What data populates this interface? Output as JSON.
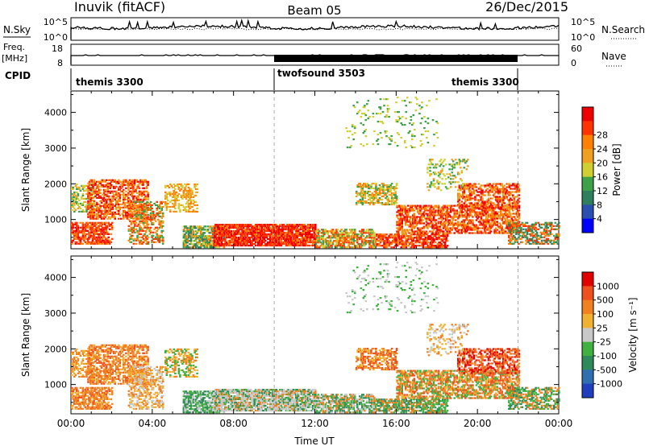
{
  "header": {
    "radar": "Inuvik (fitACF)",
    "beam": "Beam 05",
    "date": "26/Dec/2015"
  },
  "nsky_panel": {
    "left_label": "N.Sky",
    "left_ticks": [
      "10^5",
      "10^0"
    ],
    "right_ticks": [
      "10^5",
      "10^0"
    ],
    "right_label": "N.Search"
  },
  "freq_panel": {
    "left_label_top": "Freq.",
    "left_label_unit": "[MHz]",
    "left_ticks": [
      "18",
      "8"
    ],
    "right_ticks": [
      "60",
      "0"
    ],
    "right_label": "Nave"
  },
  "cpid": {
    "label": "CPID",
    "entries": [
      "themis 3300",
      "twofsound 3503",
      "themis 3300"
    ]
  },
  "chart_data": [
    {
      "type": "heatmap",
      "name": "power",
      "ylabel": "Slant Range [km]",
      "xlabel": "",
      "x_ticks": [
        "00:00",
        "04:00",
        "08:00",
        "12:00",
        "16:00",
        "20:00",
        "00:00"
      ],
      "x_range_hours": [
        0,
        24
      ],
      "y_ticks": [
        1000,
        2000,
        3000,
        4000
      ],
      "ylim": [
        180,
        4600
      ],
      "colorbar": {
        "label": "Power [dB]",
        "ticks": [
          "4",
          "8",
          "12",
          "16",
          "20",
          "24",
          "28"
        ],
        "colors": [
          "#0000ff",
          "#2a4fb0",
          "#2f7f5e",
          "#3fa04a",
          "#cfcf30",
          "#f0a020",
          "#ff7f00",
          "#ff3300",
          "#ee0000"
        ]
      },
      "mode_boundaries_hours": [
        10.0,
        22.0
      ]
    },
    {
      "type": "heatmap",
      "name": "velocity",
      "ylabel": "Slant Range [km]",
      "xlabel": "Time UT",
      "x_ticks": [
        "00:00",
        "04:00",
        "08:00",
        "12:00",
        "16:00",
        "20:00",
        "00:00"
      ],
      "x_range_hours": [
        0,
        24
      ],
      "y_ticks": [
        1000,
        2000,
        3000,
        4000
      ],
      "ylim": [
        180,
        4600
      ],
      "colorbar": {
        "label": "Velocity [m s⁻¹]",
        "ticks": [
          "1000",
          "500",
          "100",
          "25",
          "-25",
          "-100",
          "-500",
          "-1000"
        ],
        "colors": [
          "#1f3fbf",
          "#2f6fb0",
          "#2f8a5a",
          "#40b040",
          "#c8c8c8",
          "#f0b030",
          "#f08020",
          "#f05020",
          "#e00000"
        ]
      },
      "mode_boundaries_hours": [
        10.0,
        22.0
      ]
    }
  ]
}
